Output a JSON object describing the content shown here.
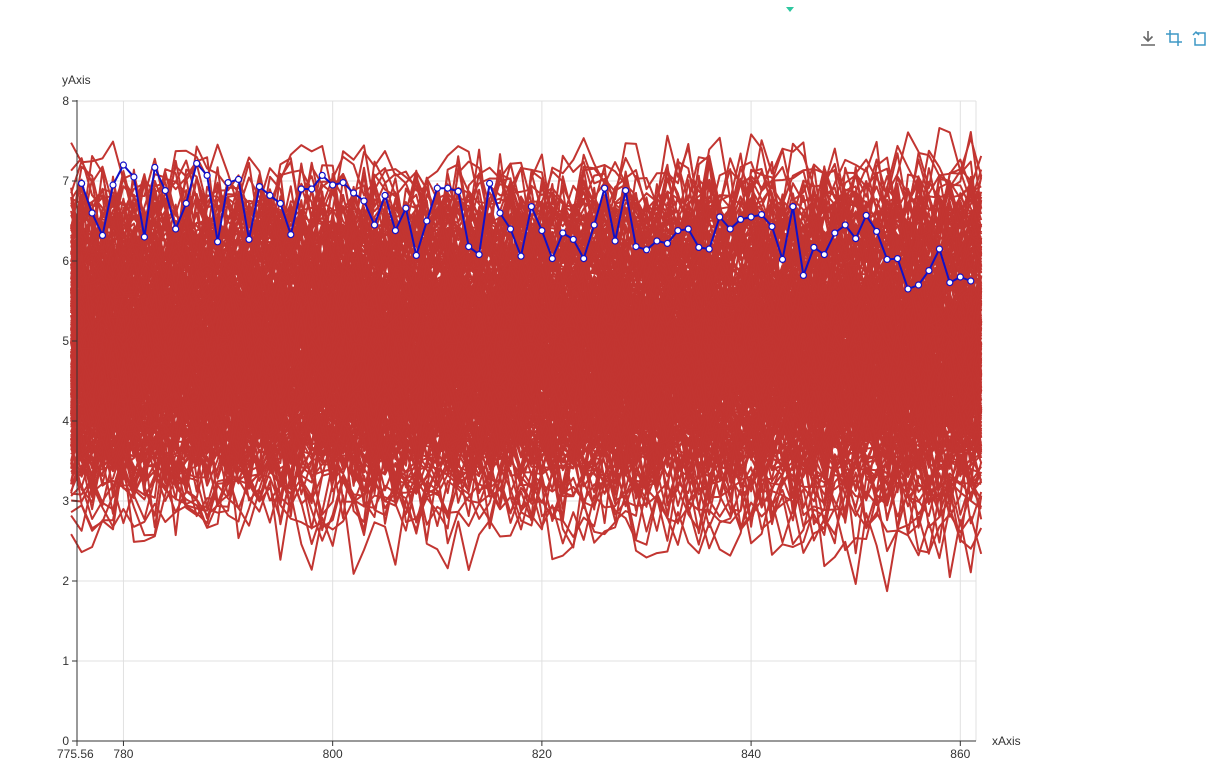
{
  "toolbox": {
    "items": [
      {
        "name": "download-icon",
        "color": "#666666"
      },
      {
        "name": "data-zoom-icon",
        "color": "#3e98c5"
      },
      {
        "name": "restore-icon",
        "color": "#3e98c5"
      }
    ]
  },
  "chart_data": {
    "type": "line",
    "xlabel": "xAxis",
    "ylabel": "yAxis",
    "xlim": [
      775.56,
      861.5
    ],
    "ylim": [
      0,
      8
    ],
    "x_ticks": [
      "775.56",
      "780",
      "800",
      "820",
      "840",
      "860"
    ],
    "y_ticks": [
      "0",
      "1",
      "2",
      "3",
      "4",
      "5",
      "6",
      "7",
      "8"
    ],
    "grid": true,
    "background_series": {
      "count": 300,
      "color": "#c23531",
      "x_start": 776,
      "x_end": 861,
      "x_step": 1,
      "distribution": "noisy lines concentrated between 3.5 and 6.8, spanning roughly 1.7 to 8"
    },
    "series": [
      {
        "color": "#1010c8",
        "x_start": 776,
        "x_step": 1,
        "values": [
          6.97,
          6.6,
          6.32,
          6.95,
          7.2,
          7.05,
          6.3,
          7.17,
          6.88,
          6.4,
          6.72,
          7.22,
          7.07,
          6.24,
          6.98,
          7.02,
          6.27,
          6.93,
          6.82,
          6.72,
          6.33,
          6.9,
          6.9,
          7.07,
          6.95,
          6.98,
          6.85,
          6.75,
          6.45,
          6.82,
          6.38,
          6.66,
          6.07,
          6.5,
          6.91,
          6.91,
          6.87,
          6.18,
          6.08,
          6.97,
          6.6,
          6.4,
          6.06,
          6.68,
          6.38,
          6.03,
          6.35,
          6.27,
          6.03,
          6.45,
          6.91,
          6.25,
          6.88,
          6.18,
          6.14,
          6.25,
          6.22,
          6.38,
          6.4,
          6.17,
          6.15,
          6.55,
          6.4,
          6.52,
          6.55,
          6.58,
          6.43,
          6.02,
          6.68,
          5.82,
          6.17,
          6.08,
          6.35,
          6.45,
          6.28,
          6.57,
          6.37,
          6.02,
          6.03,
          5.65,
          5.7,
          5.88,
          6.15,
          5.73,
          5.8,
          5.75
        ]
      }
    ]
  }
}
